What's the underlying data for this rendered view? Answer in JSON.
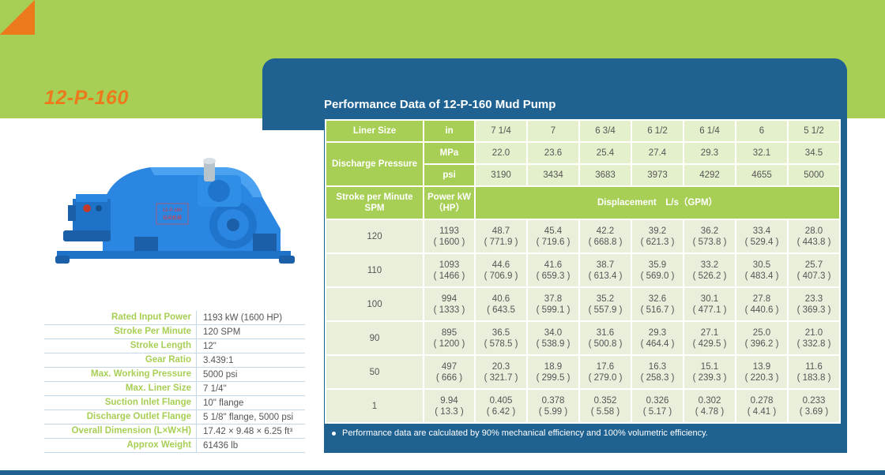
{
  "model_title": "12-P-160",
  "performance_title": "Performance Data of 12-P-160 Mud Pump",
  "table": {
    "liner_size_label": "Liner Size",
    "liner_unit": "in",
    "liner_sizes": [
      "7 1/4",
      "7",
      "6 3/4",
      "6 1/2",
      "6 1/4",
      "6",
      "5 1/2"
    ],
    "discharge_label": "Discharge Pressure",
    "mpa_unit": "MPa",
    "mpa_values": [
      "22.0",
      "23.6",
      "25.4",
      "27.4",
      "29.3",
      "32.1",
      "34.5"
    ],
    "psi_unit": "psi",
    "psi_values": [
      "3190",
      "3434",
      "3683",
      "3973",
      "4292",
      "4655",
      "5000"
    ],
    "spm_label": "Stroke per Minute SPM",
    "power_label": "Power kW（HP）",
    "displacement_label": "Displacement　L/s（GPM）",
    "rows": [
      {
        "spm": "120",
        "kw": "1193",
        "hp": "( 1600 )",
        "values": [
          [
            "48.7",
            "( 771.9 )"
          ],
          [
            "45.4",
            "( 719.6 )"
          ],
          [
            "42.2",
            "( 668.8 )"
          ],
          [
            "39.2",
            "( 621.3 )"
          ],
          [
            "36.2",
            "( 573.8 )"
          ],
          [
            "33.4",
            "( 529.4 )"
          ],
          [
            "28.0",
            "( 443.8 )"
          ]
        ]
      },
      {
        "spm": "110",
        "kw": "1093",
        "hp": "( 1466 )",
        "values": [
          [
            "44.6",
            "( 706.9 )"
          ],
          [
            "41.6",
            "( 659.3 )"
          ],
          [
            "38.7",
            "( 613.4 )"
          ],
          [
            "35.9",
            "( 569.0 )"
          ],
          [
            "33.2",
            "( 526.2 )"
          ],
          [
            "30.5",
            "( 483.4 )"
          ],
          [
            "25.7",
            "( 407.3 )"
          ]
        ]
      },
      {
        "spm": "100",
        "kw": "994",
        "hp": "( 1333 )",
        "values": [
          [
            "40.6",
            "( 643.5"
          ],
          [
            "37.8",
            "( 599.1 )"
          ],
          [
            "35.2",
            "( 557.9 )"
          ],
          [
            "32.6",
            "( 516.7 )"
          ],
          [
            "30.1",
            "( 477.1 )"
          ],
          [
            "27.8",
            "( 440.6 )"
          ],
          [
            "23.3",
            "( 369.3 )"
          ]
        ]
      },
      {
        "spm": "90",
        "kw": "895",
        "hp": "( 1200 )",
        "values": [
          [
            "36.5",
            "( 578.5 )"
          ],
          [
            "34.0",
            "( 538.9 )"
          ],
          [
            "31.6",
            "( 500.8 )"
          ],
          [
            "29.3",
            "( 464.4 )"
          ],
          [
            "27.1",
            "( 429.5 )"
          ],
          [
            "25.0",
            "( 396.2 )"
          ],
          [
            "21.0",
            "( 332.8 )"
          ]
        ]
      },
      {
        "spm": "50",
        "kw": "497",
        "hp": "( 666 )",
        "values": [
          [
            "20.3",
            "( 321.7 )"
          ],
          [
            "18.9",
            "( 299.5 )"
          ],
          [
            "17.6",
            "( 279.0 )"
          ],
          [
            "16.3",
            "( 258.3 )"
          ],
          [
            "15.1",
            "( 239.3 )"
          ],
          [
            "13.9",
            "( 220.3 )"
          ],
          [
            "11.6",
            "( 183.8 )"
          ]
        ]
      },
      {
        "spm": "1",
        "kw": "9.94",
        "hp": "( 13.3 )",
        "values": [
          [
            "0.405",
            "( 6.42 )"
          ],
          [
            "0.378",
            "( 5.99 )"
          ],
          [
            "0.352",
            "( 5.58 )"
          ],
          [
            "0.326",
            "( 5.17 )"
          ],
          [
            "0.302",
            "( 4.78 )"
          ],
          [
            "0.278",
            "( 4.41 )"
          ],
          [
            "0.233",
            "( 3.69 )"
          ]
        ]
      }
    ]
  },
  "footnote": "Performance data are calculated by 90% mechanical efficiency and 100% volumetric efficiency.",
  "pump_label_line1": "12-P-160",
  "pump_label_line2": "钻采机械",
  "specs": [
    {
      "label": "Rated Input Power",
      "value": "1193 kW (1600 HP)"
    },
    {
      "label": "Stroke Per Minute",
      "value": "120 SPM"
    },
    {
      "label": "Stroke Length",
      "value": "12\""
    },
    {
      "label": "Gear Ratio",
      "value": "3.439:1"
    },
    {
      "label": "Max. Working Pressure",
      "value": "5000 psi"
    },
    {
      "label": "Max. Liner Size",
      "value": "7 1/4\""
    },
    {
      "label": "Suction Inlet Flange",
      "value": "10\" flange"
    },
    {
      "label": "Discharge Outlet Flange",
      "value": "5 1/8\" flange, 5000 psi"
    },
    {
      "label": "Overall Dimension (L×W×H)",
      "value": "17.42 × 9.48 × 6.25 ft³"
    },
    {
      "label": "Approx Weight",
      "value": "61436 lb"
    }
  ],
  "colors": {
    "green": "#a8cf55",
    "blue": "#1f6291",
    "orange": "#ec7a1c"
  }
}
